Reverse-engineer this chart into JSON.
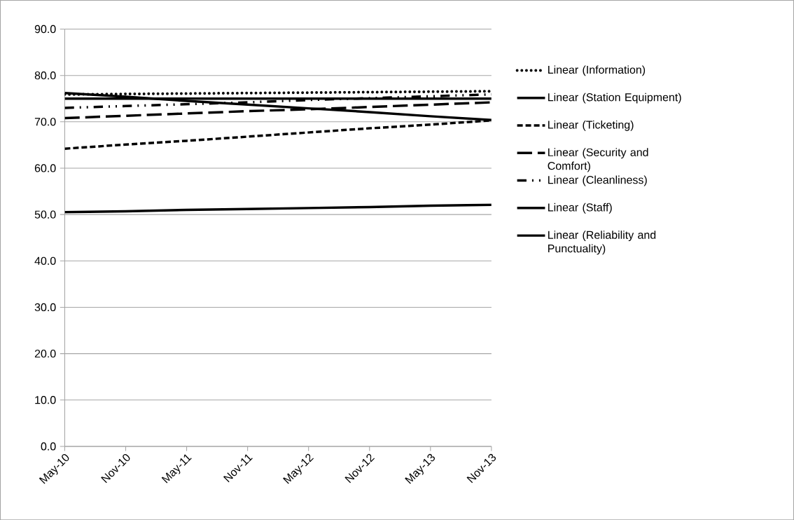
{
  "chart_data": {
    "type": "line",
    "categories": [
      "May-10",
      "Nov-10",
      "May-11",
      "Nov-11",
      "May-12",
      "Nov-12",
      "May-13",
      "Nov-13"
    ],
    "series": [
      {
        "name": "Linear (Information)",
        "color": "#000000",
        "line_style": "dotted",
        "values": [
          75.9,
          76.0,
          76.1,
          76.2,
          76.3,
          76.4,
          76.5,
          76.6
        ]
      },
      {
        "name": "Linear (Station Equipment)",
        "color": "#000000",
        "line_style": "solid",
        "values": [
          75.0,
          75.0,
          75.0,
          75.0,
          75.0,
          75.0,
          75.0,
          75.0
        ]
      },
      {
        "name": "Linear (Ticketing)",
        "color": "#000000",
        "line_style": "dashed",
        "values": [
          64.2,
          65.1,
          65.9,
          66.8,
          67.7,
          68.6,
          69.4,
          70.3
        ]
      },
      {
        "name": "Linear (Security and Comfort)",
        "color": "#000000",
        "line_style": "dashed",
        "values": [
          70.8,
          71.3,
          71.8,
          72.3,
          72.7,
          73.2,
          73.7,
          74.2
        ]
      },
      {
        "name": "Linear (Cleanliness)",
        "color": "#000000",
        "line_style": "dashed",
        "values": [
          73.0,
          73.4,
          73.8,
          74.2,
          74.7,
          75.1,
          75.5,
          75.9
        ]
      },
      {
        "name": "Linear (Staff)",
        "color": "#000000",
        "line_style": "solid",
        "values": [
          50.5,
          50.7,
          51.0,
          51.2,
          51.4,
          51.6,
          51.9,
          52.1
        ]
      },
      {
        "name": "Linear (Reliability and Punctuality)",
        "color": "#000000",
        "line_style": "solid",
        "values": [
          76.2,
          75.4,
          74.5,
          73.7,
          72.9,
          72.1,
          71.2,
          70.4
        ]
      }
    ],
    "ylim": [
      0,
      90
    ],
    "yticks": [
      {
        "value": 0,
        "label": "0.0"
      },
      {
        "value": 10,
        "label": "10.0"
      },
      {
        "value": 20,
        "label": "20.0"
      },
      {
        "value": 30,
        "label": "30.0"
      },
      {
        "value": 40,
        "label": "40.0"
      },
      {
        "value": 50,
        "label": "50.0"
      },
      {
        "value": 60,
        "label": "60.0"
      },
      {
        "value": 70,
        "label": "70.0"
      },
      {
        "value": 80,
        "label": "80.0"
      },
      {
        "value": 90,
        "label": "90.0"
      }
    ],
    "grid": "y",
    "legend": "right",
    "marker": "none"
  }
}
